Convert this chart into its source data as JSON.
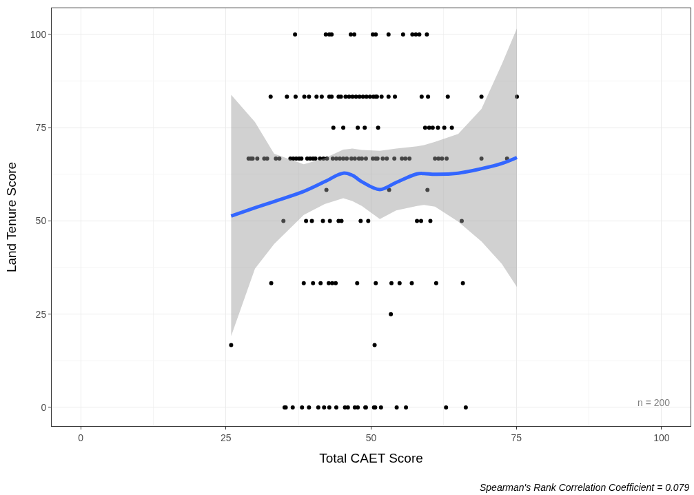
{
  "chart_data": {
    "type": "scatter",
    "xlabel": "Total CAET Score",
    "ylabel": "Land Tenure Score",
    "annotations": [
      "n = 200",
      "Spearman's Rank Correlation Coefficient = 0.079"
    ],
    "xlim": [
      -5,
      105
    ],
    "ylim": [
      -5,
      107
    ],
    "xticks": [
      0,
      25,
      50,
      75,
      100
    ],
    "yticks": [
      0,
      25,
      50,
      75,
      100
    ],
    "grid": true,
    "marker": "circle",
    "series": [
      {
        "color": "#000000",
        "x": [
          36.9,
          42.2,
          42.8,
          43.2,
          46.5,
          47.1,
          50.3,
          50.8,
          53.0,
          55.5,
          57.1,
          57.7,
          58.3,
          59.6,
          32.7,
          35.5,
          37.0,
          38.5,
          39.3,
          40.6,
          41.5,
          42.8,
          43.2,
          44.4,
          44.8,
          45.6,
          46.2,
          46.8,
          47.4,
          48.0,
          48.6,
          49.2,
          49.8,
          50.4,
          51.0,
          50.8,
          51.8,
          53.0,
          54.1,
          58.7,
          59.8,
          63.2,
          69.0,
          75.1,
          43.5,
          45.2,
          47.7,
          48.9,
          51.2,
          59.3,
          60.0,
          60.6,
          61.5,
          62.6,
          63.9,
          28.9,
          29.3,
          29.6,
          30.4,
          31.6,
          32.1,
          33.6,
          34.2,
          36.1,
          36.6,
          37.1,
          37.6,
          38.0,
          39.0,
          39.5,
          40.0,
          40.4,
          41.2,
          41.8,
          42.4,
          43.4,
          44.0,
          44.6,
          45.2,
          45.8,
          46.6,
          47.2,
          47.9,
          48.4,
          49.1,
          50.3,
          50.8,
          51.1,
          52.0,
          52.7,
          54.0,
          55.3,
          55.9,
          56.6,
          61.0,
          61.6,
          62.2,
          63.0,
          69.0,
          73.4,
          42.3,
          53.1,
          59.7,
          34.9,
          38.8,
          39.8,
          41.7,
          42.9,
          44.4,
          44.9,
          48.2,
          49.5,
          57.9,
          58.6,
          60.2,
          65.6,
          32.8,
          38.4,
          40.0,
          41.3,
          42.7,
          43.3,
          43.9,
          47.6,
          50.8,
          53.5,
          54.9,
          57.0,
          61.2,
          65.8,
          53.4,
          25.9,
          50.6,
          35.1,
          35.3,
          36.5,
          38.1,
          39.3,
          40.9,
          41.9,
          42.8,
          44.0,
          45.5,
          46.0,
          47.2,
          47.7,
          49.0,
          49.1,
          50.5,
          50.7,
          51.7,
          54.4,
          56.0,
          62.9,
          66.3
        ],
        "values": [
          100,
          100,
          100,
          100,
          100,
          100,
          100,
          100,
          100,
          100,
          100,
          100,
          100,
          100,
          83.3,
          83.3,
          83.3,
          83.3,
          83.3,
          83.3,
          83.3,
          83.3,
          83.3,
          83.3,
          83.3,
          83.3,
          83.3,
          83.3,
          83.3,
          83.3,
          83.3,
          83.3,
          83.3,
          83.3,
          83.3,
          83.3,
          83.3,
          83.3,
          83.3,
          83.3,
          83.3,
          83.3,
          83.3,
          83.3,
          75,
          75,
          75,
          75,
          75,
          75,
          75,
          75,
          75,
          75,
          75,
          66.7,
          66.7,
          66.7,
          66.7,
          66.7,
          66.7,
          66.7,
          66.7,
          66.7,
          66.7,
          66.7,
          66.7,
          66.7,
          66.7,
          66.7,
          66.7,
          66.7,
          66.7,
          66.7,
          66.7,
          66.7,
          66.7,
          66.7,
          66.7,
          66.7,
          66.7,
          66.7,
          66.7,
          66.7,
          66.7,
          66.7,
          66.7,
          66.7,
          66.7,
          66.7,
          66.7,
          66.7,
          66.7,
          66.7,
          66.7,
          66.7,
          66.7,
          66.7,
          66.7,
          66.7,
          58.3,
          58.3,
          58.3,
          50,
          50,
          50,
          50,
          50,
          50,
          50,
          50,
          50,
          50,
          50,
          50,
          50,
          33.3,
          33.3,
          33.3,
          33.3,
          33.3,
          33.3,
          33.3,
          33.3,
          33.3,
          33.3,
          33.3,
          33.3,
          33.3,
          33.3,
          25,
          16.7,
          16.7,
          0,
          0,
          0,
          0,
          0,
          0,
          0,
          0,
          0,
          0,
          0,
          0,
          0,
          0,
          0,
          0,
          0,
          0,
          0,
          0,
          0,
          0
        ]
      },
      {
        "type": "line",
        "marker": "none",
        "color": "#3366ff",
        "x": [
          25.9,
          30,
          33.3,
          38.4,
          42,
          45.2,
          46.8,
          48.4,
          51.5,
          54.3,
          57.9,
          59.1,
          61,
          65,
          69,
          72.5,
          75.1
        ],
        "values": [
          51.3,
          53.5,
          55.2,
          57.9,
          60.5,
          62.8,
          62.2,
          60.5,
          58.4,
          60.3,
          62.6,
          62.7,
          62.5,
          62.8,
          64.0,
          65.4,
          67.0
        ],
        "lower": [
          19.1,
          37.2,
          43.8,
          51.6,
          54.5,
          56.1,
          55.3,
          54.0,
          50.5,
          52.8,
          54.0,
          54.3,
          53.8,
          49.8,
          44.5,
          38.5,
          32.3
        ],
        "upper": [
          83.8,
          76.5,
          68.0,
          65.2,
          66.8,
          69.1,
          69.4,
          69.0,
          68.8,
          69.4,
          70.0,
          70.3,
          71.2,
          73.3,
          80.0,
          92.0,
          101.6
        ]
      }
    ]
  }
}
